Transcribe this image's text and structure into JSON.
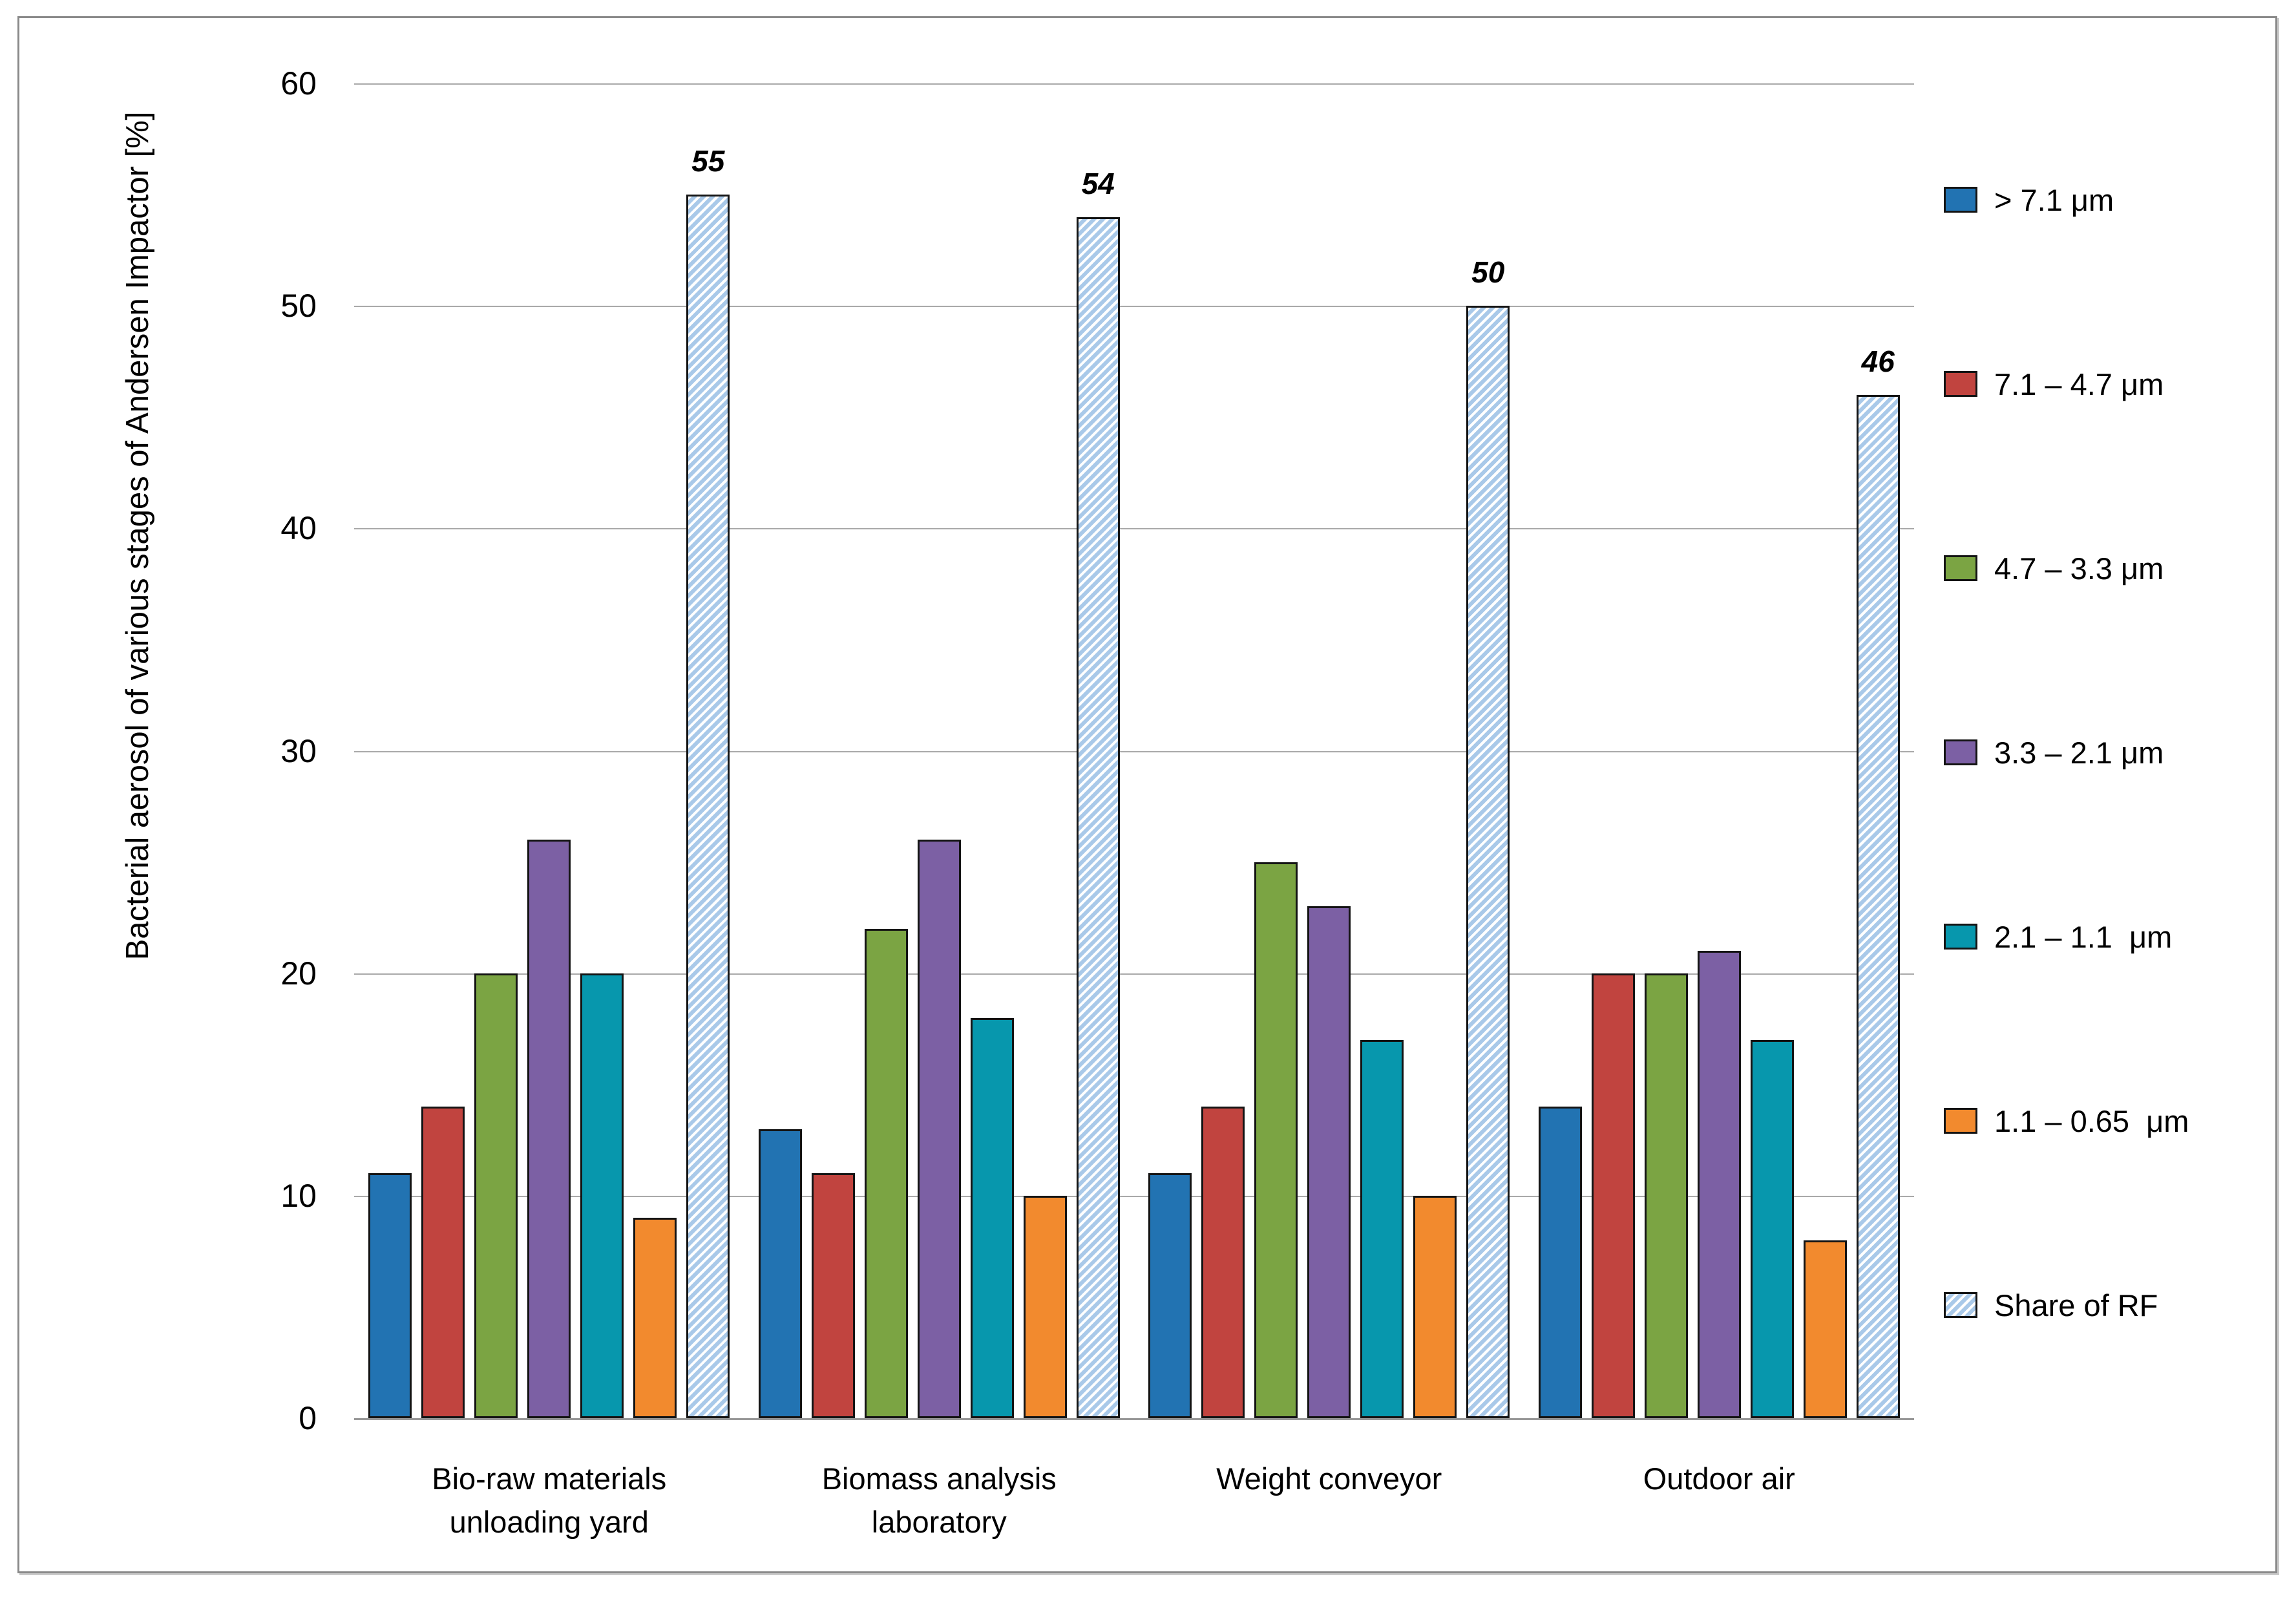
{
  "chart_data": {
    "type": "bar",
    "title": "",
    "ylabel": "Bacterial aerosol of various stages of Andersen Impactor [%]",
    "xlabel": "",
    "ylim": [
      0,
      60
    ],
    "yticks": [
      0,
      10,
      20,
      30,
      40,
      50,
      60
    ],
    "grid": true,
    "legend_position": "right",
    "categories": [
      "Bio-raw materials unloading yard",
      "Biomass analysis laboratory",
      "Weight conveyor",
      "Outdoor air"
    ],
    "category_label_lines": [
      [
        "Bio-raw materials",
        "unloading yard"
      ],
      [
        "Biomass analysis",
        "laboratory"
      ],
      [
        "Weight conveyor"
      ],
      [
        "Outdoor air"
      ]
    ],
    "series": [
      {
        "name": "> 7.1 μm",
        "color": "#2273B2",
        "values": [
          11,
          13,
          11,
          14
        ]
      },
      {
        "name": "7.1 – 4.7 μm",
        "color": "#C1443F",
        "values": [
          14,
          11,
          14,
          20
        ]
      },
      {
        "name": "4.7 – 3.3 μm",
        "color": "#7BA443",
        "values": [
          20,
          22,
          25,
          20
        ]
      },
      {
        "name": "3.3 – 2.1 μm",
        "color": "#7C60A4",
        "values": [
          26,
          26,
          23,
          21
        ]
      },
      {
        "name": "2.1 – 1.1  μm",
        "color": "#0797AD",
        "values": [
          20,
          18,
          17,
          17
        ]
      },
      {
        "name": "1.1 – 0.65  μm",
        "color": "#F28A2E",
        "values": [
          9,
          10,
          10,
          8
        ]
      },
      {
        "name": "Share of RF",
        "color": "#FFFFFF",
        "hatch": true,
        "hatch_color": "#A9C9E9",
        "values": [
          55,
          54,
          50,
          46
        ],
        "show_data_labels": true,
        "data_labels": [
          "55",
          "54",
          "50",
          "46"
        ]
      }
    ]
  }
}
